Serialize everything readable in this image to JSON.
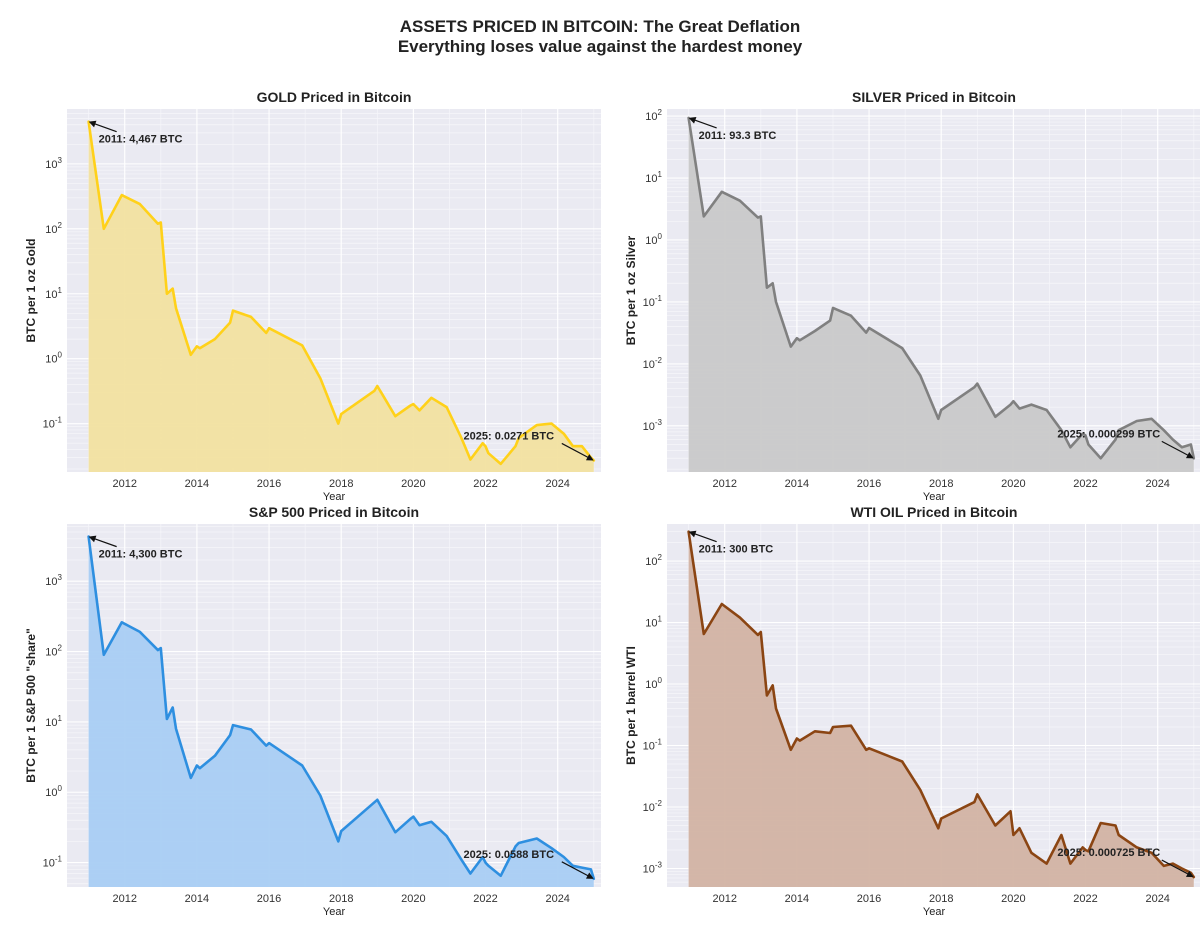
{
  "suptitle": {
    "line1": "ASSETS PRICED IN BITCOIN: The Great Deflation",
    "line2": "Everything loses value against the hardest money"
  },
  "chart_data": [
    {
      "type": "area",
      "title": "GOLD Priced in Bitcoin",
      "xlabel": "Year",
      "ylabel": "BTC per 1 oz Gold",
      "yscale": "log",
      "xlim": [
        2010.4,
        2025.2
      ],
      "ylim": [
        0.018,
        7000
      ],
      "xticks": [
        "2012",
        "2014",
        "2016",
        "2018",
        "2020",
        "2022",
        "2024"
      ],
      "yticks": [
        "10^-1",
        "10^0",
        "10^1",
        "10^2",
        "10^3"
      ],
      "grid": true,
      "color": "#FFD11A",
      "fill": "#F2E2A0",
      "annotations": [
        {
          "text": "2011: 4,467 BTC",
          "x": 2011.0,
          "y": 4467
        },
        {
          "text": "2025: 0.0271 BTC",
          "x": 2025.0,
          "y": 0.0271
        }
      ],
      "x": [
        2011.0,
        2011.42,
        2011.92,
        2012.42,
        2012.92,
        2013.0,
        2013.17,
        2013.33,
        2013.42,
        2013.83,
        2014.0,
        2014.08,
        2014.5,
        2014.92,
        2015.0,
        2015.5,
        2015.92,
        2016.0,
        2016.92,
        2017.42,
        2017.92,
        2018.0,
        2018.92,
        2019.0,
        2019.5,
        2019.92,
        2020.0,
        2020.17,
        2020.5,
        2020.92,
        2021.33,
        2021.58,
        2021.92,
        2022.0,
        2022.08,
        2022.42,
        2022.83,
        2022.92,
        2023.42,
        2023.83,
        2024.17,
        2024.42,
        2024.67,
        2024.92,
        2025.0
      ],
      "y": [
        4467,
        100,
        330,
        240,
        120,
        125,
        10,
        12,
        6,
        1.15,
        1.55,
        1.45,
        2.0,
        3.6,
        5.5,
        4.4,
        2.5,
        2.95,
        1.6,
        0.5,
        0.1,
        0.14,
        0.32,
        0.38,
        0.13,
        0.19,
        0.2,
        0.16,
        0.25,
        0.18,
        0.06,
        0.028,
        0.05,
        0.045,
        0.035,
        0.024,
        0.045,
        0.06,
        0.095,
        0.1,
        0.07,
        0.045,
        0.045,
        0.03,
        0.0271
      ]
    },
    {
      "type": "area",
      "title": "SILVER Priced in Bitcoin",
      "xlabel": "Year",
      "ylabel": "BTC per 1 oz Silver",
      "yscale": "log",
      "xlim": [
        2010.4,
        2025.2
      ],
      "ylim": [
        0.00018,
        130
      ],
      "xticks": [
        "2012",
        "2014",
        "2016",
        "2018",
        "2020",
        "2022",
        "2024"
      ],
      "yticks": [
        "10^-3",
        "10^-2",
        "10^-1",
        "10^0",
        "10^1",
        "10^2"
      ],
      "grid": true,
      "color": "#808080",
      "fill": "#C9C9C9",
      "annotations": [
        {
          "text": "2011: 93.3 BTC",
          "x": 2011.0,
          "y": 93.3
        },
        {
          "text": "2025: 0.000299 BTC",
          "x": 2025.0,
          "y": 0.000299
        }
      ],
      "x": [
        2011.0,
        2011.42,
        2011.92,
        2012.42,
        2012.92,
        2013.0,
        2013.17,
        2013.33,
        2013.42,
        2013.83,
        2014.0,
        2014.08,
        2014.5,
        2014.92,
        2015.0,
        2015.5,
        2015.92,
        2016.0,
        2016.92,
        2017.42,
        2017.92,
        2018.0,
        2018.92,
        2019.0,
        2019.5,
        2019.92,
        2020.0,
        2020.17,
        2020.5,
        2020.92,
        2021.33,
        2021.58,
        2021.92,
        2022.0,
        2022.08,
        2022.42,
        2022.83,
        2022.92,
        2023.42,
        2023.83,
        2024.17,
        2024.42,
        2024.67,
        2024.92,
        2025.0
      ],
      "y": [
        93.3,
        2.4,
        6.0,
        4.3,
        2.3,
        2.4,
        0.17,
        0.2,
        0.1,
        0.019,
        0.026,
        0.024,
        0.034,
        0.05,
        0.08,
        0.06,
        0.032,
        0.038,
        0.018,
        0.0065,
        0.0013,
        0.0018,
        0.0042,
        0.0048,
        0.0014,
        0.0022,
        0.0025,
        0.0019,
        0.0022,
        0.0018,
        0.00085,
        0.00045,
        0.00075,
        0.0007,
        0.0005,
        0.0003,
        0.0006,
        0.00085,
        0.0012,
        0.0013,
        0.00085,
        0.0006,
        0.00045,
        0.0005,
        0.000299
      ]
    },
    {
      "type": "area",
      "title": "S&P 500 Priced in Bitcoin",
      "xlabel": "Year",
      "ylabel": "BTC per 1 S&P 500 \"share\"",
      "yscale": "log",
      "xlim": [
        2010.4,
        2025.2
      ],
      "ylim": [
        0.045,
        6500
      ],
      "xticks": [
        "2012",
        "2014",
        "2016",
        "2018",
        "2020",
        "2022",
        "2024"
      ],
      "yticks": [
        "10^-1",
        "10^0",
        "10^1",
        "10^2",
        "10^3"
      ],
      "grid": true,
      "color": "#2E8FE0",
      "fill": "#A9CDF3",
      "annotations": [
        {
          "text": "2011: 4,300 BTC",
          "x": 2011.0,
          "y": 4300
        },
        {
          "text": "2025: 0.0588 BTC",
          "x": 2025.0,
          "y": 0.0588
        }
      ],
      "x": [
        2011.0,
        2011.42,
        2011.92,
        2012.42,
        2012.92,
        2013.0,
        2013.17,
        2013.33,
        2013.42,
        2013.83,
        2014.0,
        2014.08,
        2014.5,
        2014.92,
        2015.0,
        2015.5,
        2015.92,
        2016.0,
        2016.92,
        2017.42,
        2017.92,
        2018.0,
        2018.92,
        2019.0,
        2019.5,
        2019.92,
        2020.0,
        2020.17,
        2020.5,
        2020.92,
        2021.33,
        2021.58,
        2021.92,
        2022.0,
        2022.08,
        2022.42,
        2022.83,
        2022.92,
        2023.42,
        2023.83,
        2024.17,
        2024.42,
        2024.67,
        2024.92,
        2025.0
      ],
      "y": [
        4300,
        90,
        260,
        190,
        105,
        112,
        11,
        16,
        8,
        1.6,
        2.4,
        2.2,
        3.3,
        6.5,
        9.0,
        7.8,
        4.6,
        5.0,
        2.4,
        0.9,
        0.2,
        0.28,
        0.72,
        0.78,
        0.27,
        0.42,
        0.45,
        0.34,
        0.38,
        0.24,
        0.11,
        0.07,
        0.12,
        0.1,
        0.09,
        0.065,
        0.17,
        0.19,
        0.22,
        0.16,
        0.12,
        0.09,
        0.085,
        0.08,
        0.0588
      ]
    },
    {
      "type": "area",
      "title": "WTI OIL Priced in Bitcoin",
      "xlabel": "Year",
      "ylabel": "BTC per 1 barrel WTI",
      "yscale": "log",
      "xlim": [
        2010.4,
        2025.2
      ],
      "ylim": [
        0.0005,
        400
      ],
      "xticks": [
        "2012",
        "2014",
        "2016",
        "2018",
        "2020",
        "2022",
        "2024"
      ],
      "yticks": [
        "10^-3",
        "10^-2",
        "10^-1",
        "10^0",
        "10^1",
        "10^2"
      ],
      "grid": true,
      "color": "#8B4513",
      "fill": "#D2B3A3",
      "annotations": [
        {
          "text": "2011: 300 BTC",
          "x": 2011.0,
          "y": 300
        },
        {
          "text": "2025: 0.000725 BTC",
          "x": 2025.0,
          "y": 0.000725
        }
      ],
      "x": [
        2011.0,
        2011.42,
        2011.92,
        2012.42,
        2012.92,
        2013.0,
        2013.17,
        2013.33,
        2013.42,
        2013.83,
        2014.0,
        2014.08,
        2014.5,
        2014.92,
        2015.0,
        2015.5,
        2015.92,
        2016.0,
        2016.92,
        2017.42,
        2017.92,
        2018.0,
        2018.92,
        2019.0,
        2019.5,
        2019.92,
        2020.0,
        2020.17,
        2020.5,
        2020.92,
        2021.33,
        2021.58,
        2021.92,
        2022.0,
        2022.08,
        2022.42,
        2022.83,
        2022.92,
        2023.42,
        2023.83,
        2024.17,
        2024.42,
        2024.67,
        2024.92,
        2025.0
      ],
      "y": [
        300,
        6.5,
        20,
        12,
        6.3,
        7.0,
        0.65,
        0.95,
        0.4,
        0.085,
        0.13,
        0.12,
        0.17,
        0.16,
        0.2,
        0.21,
        0.085,
        0.09,
        0.055,
        0.019,
        0.0045,
        0.0065,
        0.012,
        0.016,
        0.005,
        0.0085,
        0.0035,
        0.0045,
        0.0018,
        0.0012,
        0.0035,
        0.0012,
        0.0022,
        0.002,
        0.0019,
        0.0055,
        0.005,
        0.0035,
        0.0022,
        0.0018,
        0.0011,
        0.0012,
        0.001,
        0.00085,
        0.000725
      ]
    }
  ]
}
